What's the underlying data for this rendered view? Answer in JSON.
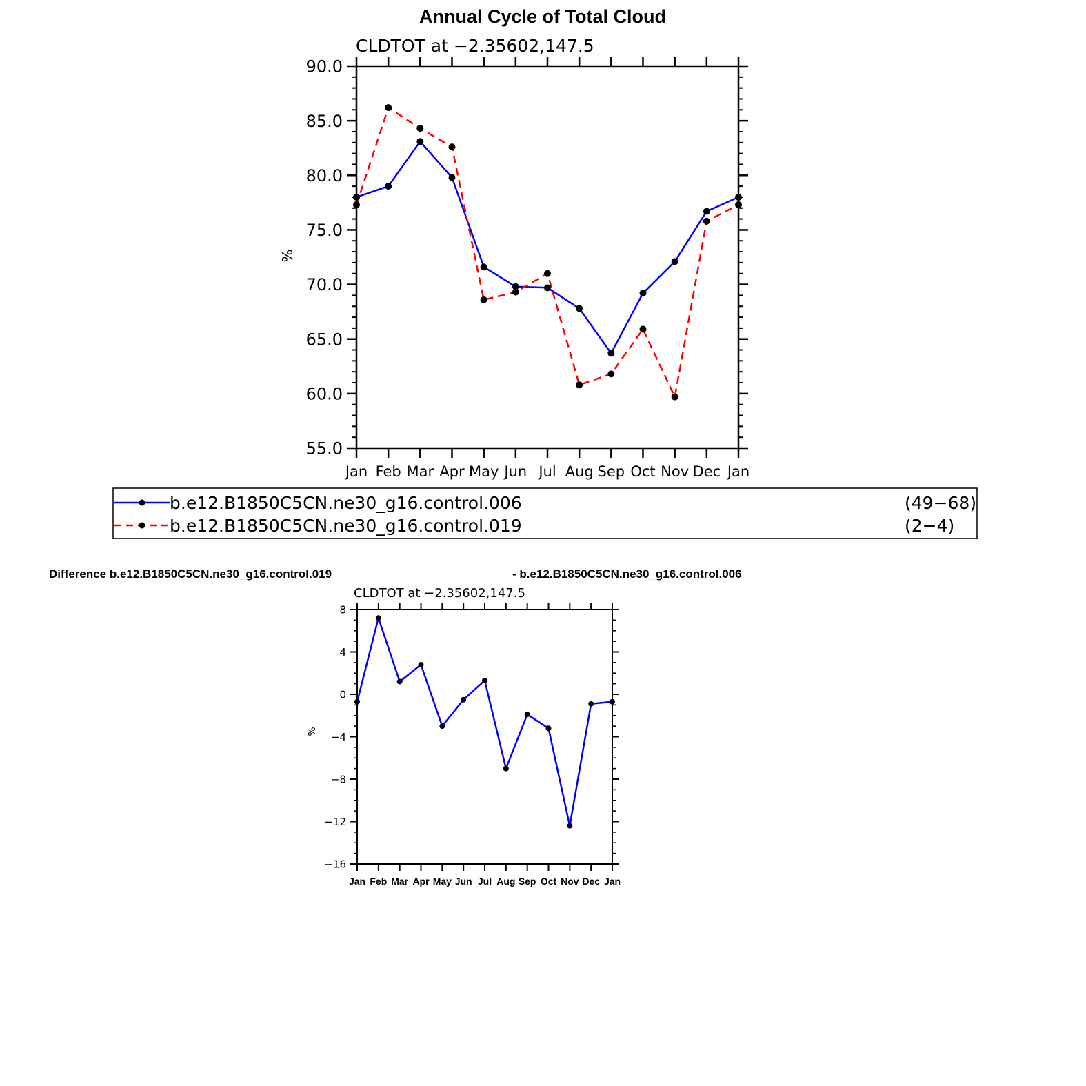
{
  "chart_data": [
    {
      "type": "line",
      "title": "Annual Cycle of Total Cloud",
      "subtitle": "CLDTOT at −2.35602,147.5",
      "xlabel": "",
      "ylabel": "%",
      "ylim": [
        55,
        90
      ],
      "yticks": [
        "55.0",
        "60.0",
        "65.0",
        "70.0",
        "75.0",
        "80.0",
        "85.0",
        "90.0"
      ],
      "ytick_values": [
        55,
        60,
        65,
        70,
        75,
        80,
        85,
        90
      ],
      "categories": [
        "Jan",
        "Feb",
        "Mar",
        "Apr",
        "May",
        "Jun",
        "Jul",
        "Aug",
        "Sep",
        "Oct",
        "Nov",
        "Dec",
        "Jan"
      ],
      "series": [
        {
          "name": "b.e12.B1850C5CN.ne30_g16.control.006",
          "range": "(49−68)",
          "color": "#0000ff",
          "dash": "solid",
          "values": [
            78.0,
            79.0,
            83.1,
            79.8,
            71.6,
            69.8,
            69.7,
            67.8,
            63.7,
            69.2,
            72.1,
            76.7,
            78.0
          ]
        },
        {
          "name": "b.e12.B1850C5CN.ne30_g16.control.019",
          "range": "(2−4)",
          "color": "#ff0000",
          "dash": "dashed",
          "values": [
            77.3,
            86.2,
            84.3,
            82.6,
            68.6,
            69.3,
            71.0,
            60.8,
            61.8,
            65.9,
            59.7,
            75.8,
            77.3
          ]
        }
      ],
      "legend": "below"
    },
    {
      "type": "line",
      "title_left": "Difference b.e12.B1850C5CN.ne30_g16.control.019",
      "title_right": "- b.e12.B1850C5CN.ne30_g16.control.006",
      "subtitle": "CLDTOT at −2.35602,147.5",
      "xlabel": "",
      "ylabel": "%",
      "ylim": [
        -16,
        8
      ],
      "yticks": [
        "−16",
        "−12",
        "−8",
        "−4",
        "0",
        "4",
        "8"
      ],
      "ytick_values": [
        -16,
        -12,
        -8,
        -4,
        0,
        4,
        8
      ],
      "categories": [
        "Jan",
        "Feb",
        "Mar",
        "Apr",
        "May",
        "Jun",
        "Jul",
        "Aug",
        "Sep",
        "Oct",
        "Nov",
        "Dec",
        "Jan"
      ],
      "series": [
        {
          "color": "#0000ff",
          "values": [
            -0.7,
            7.2,
            1.2,
            2.8,
            -3.0,
            -0.5,
            1.3,
            -7.0,
            -1.9,
            -3.2,
            -12.4,
            -0.9,
            -0.7
          ]
        }
      ]
    }
  ]
}
